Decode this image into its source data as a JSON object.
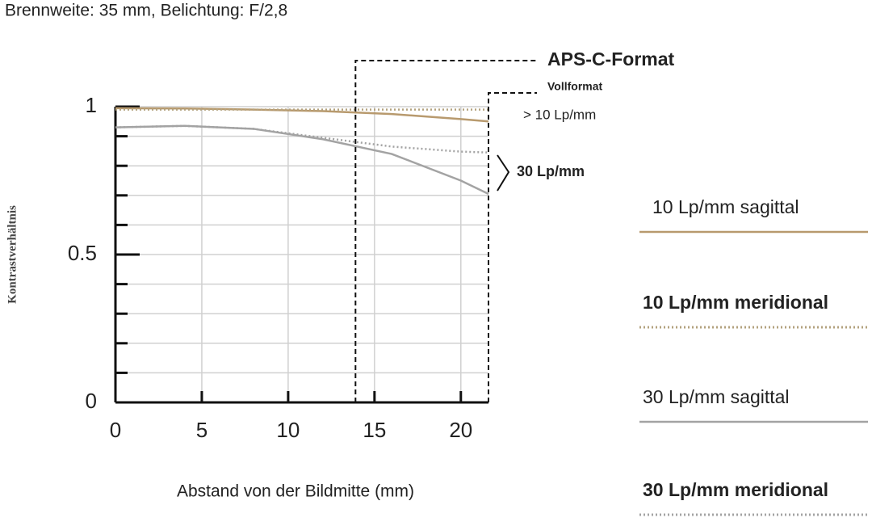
{
  "chart_data": {
    "type": "line",
    "title": "Brennweite: 35 mm, Belichtung: F/2,8",
    "x_label": "Abstand von der Bildmitte (mm)",
    "y_label": "Kontrastverhältnis",
    "x": [
      0,
      4,
      8,
      12,
      16,
      20,
      21.6
    ],
    "series": [
      {
        "name": "10 Lp/mm sagittal",
        "color": "#b89a6e",
        "dash": "solid",
        "values": [
          0.995,
          0.994,
          0.99,
          0.985,
          0.975,
          0.958,
          0.95
        ]
      },
      {
        "name": "10 Lp/mm meridional",
        "color": "#b3a27e",
        "dash": "dotted",
        "values": [
          0.99,
          0.99,
          0.99,
          0.99,
          0.99,
          0.99,
          0.99
        ]
      },
      {
        "name": "30 Lp/mm sagittal",
        "color": "#a3a3a3",
        "dash": "solid",
        "values": [
          0.93,
          0.935,
          0.925,
          0.89,
          0.84,
          0.75,
          0.705
        ]
      },
      {
        "name": "30 Lp/mm meridional",
        "color": "#a3a3a3",
        "dash": "dotted",
        "values": [
          0.93,
          0.935,
          0.925,
          0.895,
          0.865,
          0.848,
          0.845
        ]
      }
    ],
    "xlim": [
      0,
      21.6
    ],
    "ylim": [
      0,
      1
    ],
    "xticks": [
      0,
      5,
      10,
      15,
      20
    ],
    "yticks": [
      0,
      0.5,
      1
    ],
    "y_minor_ticks": [
      0.1,
      0.2,
      0.3,
      0.4,
      0.6,
      0.7,
      0.8,
      0.9
    ],
    "grid": true,
    "annotations": [
      {
        "text": "APS-C-Format",
        "x": 13.9
      },
      {
        "text": "Vollformat",
        "x": 21.6
      }
    ],
    "group_labels": [
      "> 10 Lp/mm",
      "30 Lp/mm"
    ]
  }
}
